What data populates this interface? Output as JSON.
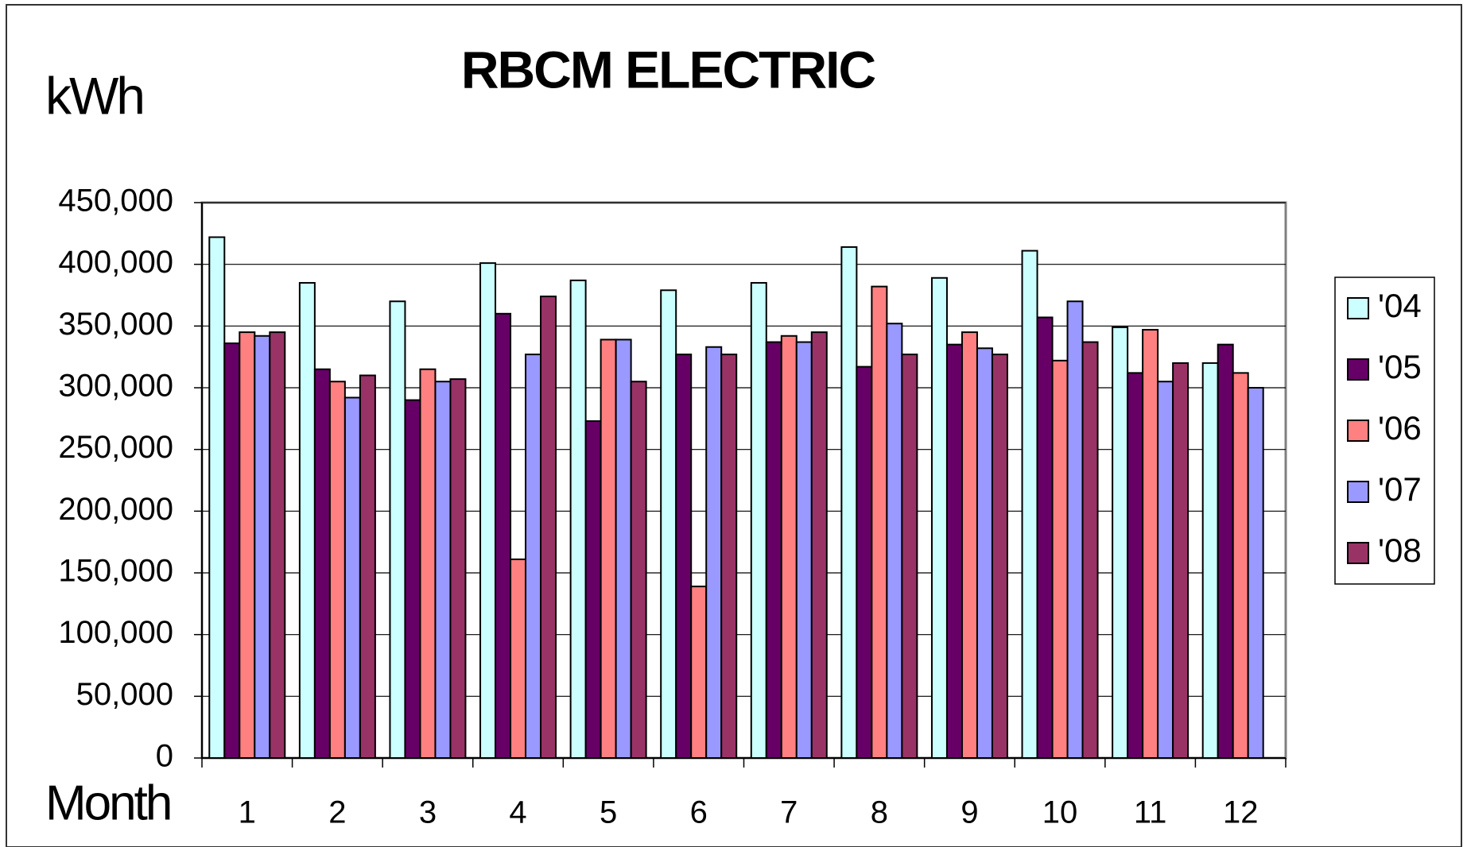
{
  "chart_data": {
    "type": "bar",
    "title": "RBCM ELECTRIC",
    "y_label": "kWh",
    "x_label": "Month",
    "categories": [
      "1",
      "2",
      "3",
      "4",
      "5",
      "6",
      "7",
      "8",
      "9",
      "10",
      "11",
      "12"
    ],
    "series": [
      {
        "name": "'04",
        "color": "#ccffff",
        "values": [
          422000,
          385000,
          370000,
          401000,
          387000,
          379000,
          385000,
          414000,
          389000,
          411000,
          349000,
          320000
        ]
      },
      {
        "name": "'05",
        "color": "#660066",
        "values": [
          336000,
          315000,
          290000,
          360000,
          273000,
          327000,
          337000,
          317000,
          335000,
          357000,
          312000,
          335000
        ]
      },
      {
        "name": "'06",
        "color": "#ff8080",
        "values": [
          345000,
          305000,
          315000,
          161000,
          339000,
          139000,
          342000,
          382000,
          345000,
          322000,
          347000,
          312000
        ]
      },
      {
        "name": "'07",
        "color": "#9999ff",
        "values": [
          342000,
          292000,
          305000,
          327000,
          339000,
          333000,
          337000,
          352000,
          332000,
          370000,
          305000,
          300000
        ]
      },
      {
        "name": "'08",
        "color": "#993366",
        "values": [
          345000,
          310000,
          307000,
          374000,
          305000,
          327000,
          345000,
          327000,
          327000,
          337000,
          320000,
          null
        ]
      }
    ],
    "ylim": [
      0,
      450000
    ],
    "yticks": [
      0,
      {
        "value": 50000,
        "label": "50,000"
      },
      {
        "value": 100000,
        "label": "100,000"
      },
      {
        "value": 150000,
        "label": "150,000"
      },
      {
        "value": 200000,
        "label": "200,000"
      },
      {
        "value": 250000,
        "label": "250,000"
      },
      {
        "value": 300000,
        "label": "300,000"
      },
      {
        "value": 350000,
        "label": "350,000"
      },
      {
        "value": 400000,
        "label": "400,000"
      },
      {
        "value": 450000,
        "label": "450,000"
      }
    ],
    "grid": true,
    "legend": "right"
  }
}
